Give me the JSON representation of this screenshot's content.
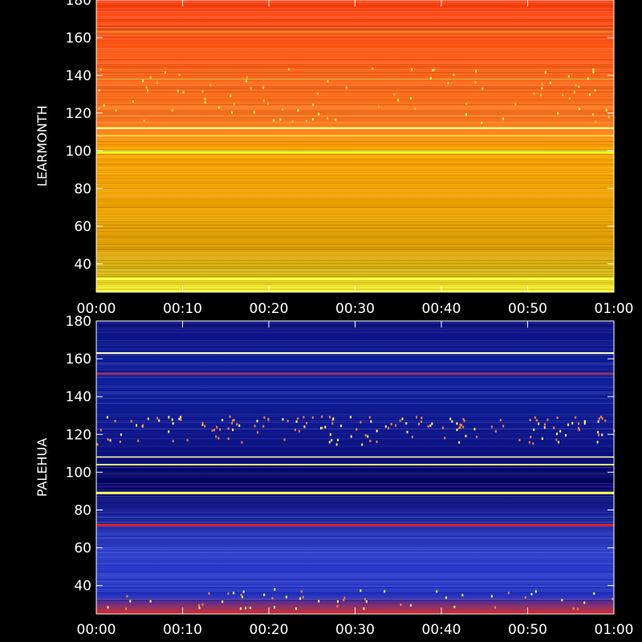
{
  "chart_data": [
    {
      "type": "heatmap",
      "station": "LEARMONTH",
      "ylabel": "LEARMONTH",
      "ylim": [
        25,
        180
      ],
      "xlim": [
        "00:00",
        "01:00"
      ],
      "x_ticks": [
        "00:00",
        "00:10",
        "00:20",
        "00:30",
        "00:40",
        "00:50",
        "01:00"
      ],
      "y_ticks": [
        40,
        60,
        80,
        100,
        120,
        140,
        160,
        180
      ],
      "colors": {
        "low": "#ffff30",
        "mid": "#ffa500",
        "high": "#ff4010"
      },
      "bands": [
        {
          "freq": 32,
          "color": "#ffff40",
          "width": 3
        },
        {
          "freq": 99,
          "color": "#e8ff20",
          "width": 2.5
        },
        {
          "freq": 100,
          "color": "#c8d830",
          "width": 1.5
        },
        {
          "freq": 108,
          "color": "#ffee40",
          "width": 1.5
        },
        {
          "freq": 112,
          "color": "#ffff80",
          "width": 2.5
        },
        {
          "freq": 138,
          "color": "#c0c040",
          "width": 1
        },
        {
          "freq": 163,
          "color": "#d8d840",
          "width": 1
        }
      ]
    },
    {
      "type": "heatmap",
      "station": "PALEHUA",
      "ylabel": "PALEHUA",
      "ylim": [
        25,
        180
      ],
      "xlim": [
        "00:00",
        "01:00"
      ],
      "x_ticks": [
        "00:00",
        "00:10",
        "00:20",
        "00:30",
        "00:40",
        "00:50",
        "01:00"
      ],
      "y_ticks": [
        40,
        60,
        80,
        100,
        120,
        140,
        160,
        180
      ],
      "colors": {
        "low": "#000080",
        "mid": "#2030e0",
        "high": "#ff3020"
      },
      "bands": [
        {
          "freq": 89,
          "color": "#ffff60",
          "width": 3
        },
        {
          "freq": 104,
          "color": "#ffff80",
          "width": 2
        },
        {
          "freq": 108,
          "color": "#ffeeaa",
          "width": 1.5
        },
        {
          "freq": 152,
          "color": "#ff2020",
          "width": 1.5
        },
        {
          "freq": 163,
          "color": "#ffffd0",
          "width": 2
        },
        {
          "freq": 72,
          "color": "#e02020",
          "width": 3
        }
      ]
    }
  ]
}
